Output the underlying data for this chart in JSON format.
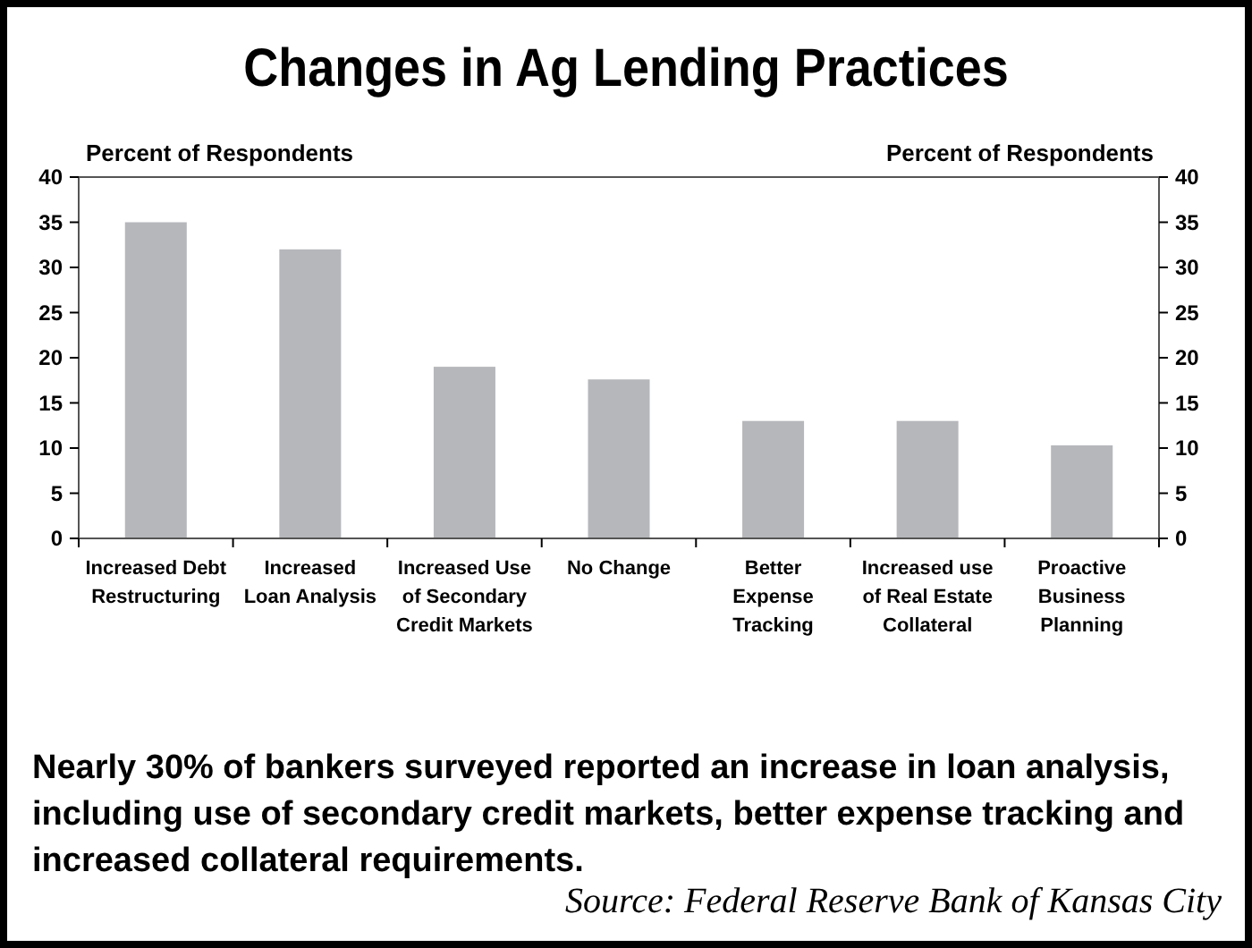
{
  "chart_data": {
    "type": "bar",
    "title": "Changes in Ag Lending Practices",
    "ylabel": "Percent of Respondents",
    "y2label": "Percent of Respondents",
    "categories": [
      "Increased Debt Restructuring",
      "Increased Loan Analysis",
      "Increased Use of Secondary Credit Markets",
      "No Change",
      "Better Expense Tracking",
      "Increased use of Real Estate Collateral",
      "Proactive Business Planning"
    ],
    "values": [
      35,
      32,
      19,
      17.6,
      13,
      13,
      10.3
    ],
    "color": "#b6b7bb",
    "ylim": [
      0,
      40
    ],
    "yticks": [
      0,
      5,
      10,
      15,
      20,
      25,
      30,
      35,
      40
    ],
    "y2lim": [
      0,
      40
    ],
    "y2ticks": [
      0,
      5,
      10,
      15,
      20,
      25,
      30,
      35,
      40
    ],
    "grid": false,
    "annotations": [
      "Nearly 30% of bankers surveyed reported an increase in loan analysis, including use of secondary credit markets, better expense tracking and increased collateral requirements.",
      "Source: Federal Reserve Bank of Kansas City"
    ]
  }
}
